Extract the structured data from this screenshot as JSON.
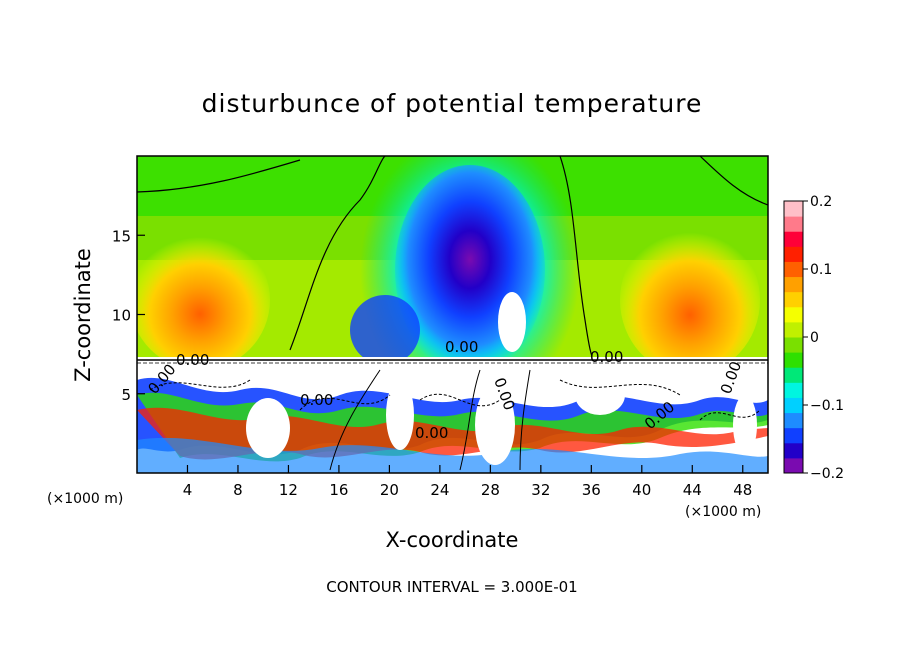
{
  "chart_data": {
    "type": "heatmap",
    "title": "disturbunce of potential temperature",
    "xlabel": "X-coordinate",
    "ylabel": "Z-coordinate",
    "x_unit_label": "(×1000 m)",
    "x_unit_label_right": "(×1000 m)",
    "x_ticks": [
      "4",
      "8",
      "12",
      "16",
      "20",
      "24",
      "28",
      "32",
      "36",
      "40",
      "44",
      "48"
    ],
    "y_ticks": [
      "5",
      "10",
      "15"
    ],
    "xlim": [
      0,
      50
    ],
    "ylim": [
      0,
      20
    ],
    "colorbar": {
      "ticks": [
        "0.2",
        "0.1",
        "0",
        "−0.1",
        "−0.2"
      ],
      "range": [
        -0.2,
        0.2
      ],
      "colors": [
        "#7a0bb0",
        "#2200c8",
        "#1040ff",
        "#1e8cff",
        "#00d0ff",
        "#00f5e0",
        "#00e878",
        "#2ee000",
        "#7ae000",
        "#c0f000",
        "#f5ff00",
        "#ffd000",
        "#ffa000",
        "#ff6000",
        "#ff2000",
        "#ff0038",
        "#ff7a8a",
        "#ffc0c8"
      ]
    },
    "contour_labels": [
      "0.00",
      "0.00",
      "0.00",
      "0.00",
      "0.00",
      "0.00",
      "0.00",
      "0.00",
      "0.00"
    ],
    "footer": "CONTOUR INTERVAL = 3.000E-01"
  }
}
